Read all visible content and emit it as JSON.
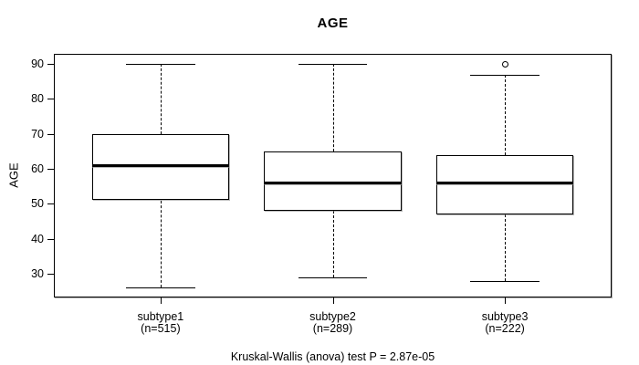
{
  "figure": {
    "title": "AGE",
    "y_axis_label": "AGE",
    "caption": "Kruskal-Wallis (anova) test P = 2.87e-05"
  },
  "chart_data": {
    "type": "boxplot",
    "title": "AGE",
    "xlabel": "",
    "ylabel": "AGE",
    "caption": "Kruskal-Wallis (anova) test P = 2.87e-05",
    "categories": [
      "subtype1",
      "subtype2",
      "subtype3"
    ],
    "category_sublabels": [
      "(n=515)",
      "(n=289)",
      "(n=222)"
    ],
    "group_sizes": [
      515,
      289,
      222
    ],
    "yticks": [
      30,
      40,
      50,
      60,
      70,
      80,
      90
    ],
    "ylim": [
      23.2,
      92.9
    ],
    "xlim": [
      0.38,
      3.62
    ],
    "box_width_units": 0.8,
    "cap_width_units": 0.4,
    "grid": false,
    "legend": "none",
    "series": [
      {
        "name": "subtype1",
        "n": 515,
        "position": 1,
        "whisker_low": 26,
        "q1": 51,
        "median": 61,
        "q3": 70,
        "whisker_high": 90,
        "outliers": []
      },
      {
        "name": "subtype2",
        "n": 289,
        "position": 2,
        "whisker_low": 29,
        "q1": 48,
        "median": 56,
        "q3": 65,
        "whisker_high": 90,
        "outliers": []
      },
      {
        "name": "subtype3",
        "n": 222,
        "position": 3,
        "whisker_low": 28,
        "q1": 47,
        "median": 56,
        "q3": 64,
        "whisker_high": 87,
        "outliers": [
          90
        ]
      }
    ],
    "colors": {
      "line": "#000000",
      "box_fill": "#ffffff",
      "background": "#ffffff",
      "shadow": "#aaaaaa"
    }
  }
}
